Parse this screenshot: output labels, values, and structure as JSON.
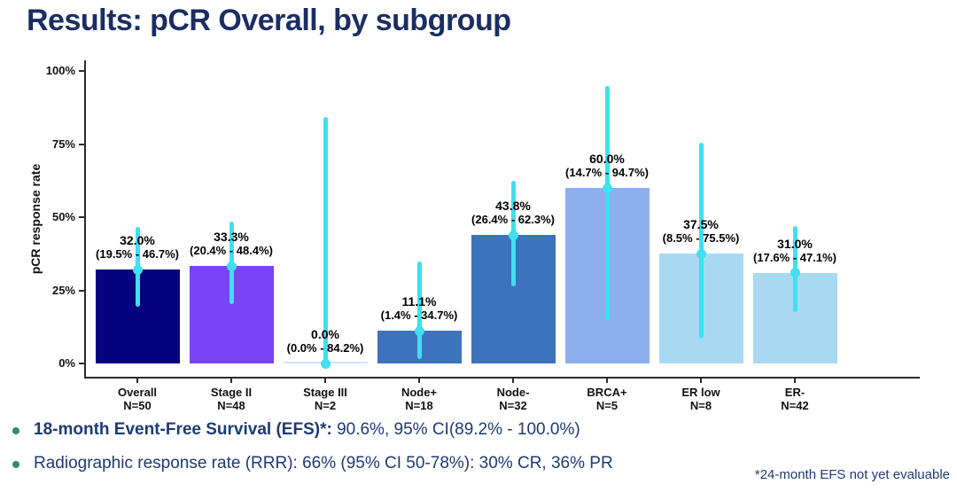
{
  "slide": {
    "title": "Results: pCR Overall, by subgroup",
    "bullets": [
      {
        "lead": "18-month Event-Free Survival (EFS)*:",
        "rest": " 90.6%, 95% CI(89.2% - 100.0%)"
      },
      {
        "lead": "",
        "rest": "Radiographic response rate (RRR): 66% (95% CI 50-78%): 30% CR, 36% PR"
      }
    ],
    "footnote": "*24-month EFS not yet evaluable",
    "colors": {
      "title_text": "#1b2e63",
      "body_text": "#1e3a72",
      "bullet_dot": "#2e8b74"
    }
  },
  "chart_data": {
    "type": "bar",
    "title": "",
    "xlabel": "",
    "ylabel": "pCR response rate",
    "ylim": [
      0,
      100
    ],
    "grid": false,
    "legend": "none",
    "yticks": [
      {
        "value": 0,
        "label": "0%"
      },
      {
        "value": 25,
        "label": "25%"
      },
      {
        "value": 50,
        "label": "50%"
      },
      {
        "value": 75,
        "label": "75%"
      },
      {
        "value": 100,
        "label": "100%"
      }
    ],
    "errorbar_color": "#3fe0f0",
    "point_color": "#3fe0f0",
    "groups": [
      {
        "category": "Overall",
        "n": "N=50",
        "value": 32.0,
        "value_label": "32.0%",
        "ci_low": 19.5,
        "ci_high": 46.7,
        "ci_label": "(19.5% - 46.7%)",
        "color": "#04027f"
      },
      {
        "category": "Stage II",
        "n": "N=48",
        "value": 33.3,
        "value_label": "33.3%",
        "ci_low": 20.4,
        "ci_high": 48.4,
        "ci_label": "(20.4% - 48.4%)",
        "color": "#7a43f6"
      },
      {
        "category": "Stage III",
        "n": "N=2",
        "value": 0.0,
        "value_label": "0.0%",
        "ci_low": 0.0,
        "ci_high": 84.2,
        "ci_label": "(0.0% - 84.2%)",
        "color": "#cfe7f8"
      },
      {
        "category": "Node+",
        "n": "N=18",
        "value": 11.1,
        "value_label": "11.1%",
        "ci_low": 1.4,
        "ci_high": 34.7,
        "ci_label": "(1.4% - 34.7%)",
        "color": "#3d73bc"
      },
      {
        "category": "Node-",
        "n": "N=32",
        "value": 43.8,
        "value_label": "43.8%",
        "ci_low": 26.4,
        "ci_high": 62.3,
        "ci_label": "(26.4% - 62.3%)",
        "color": "#3d73bc"
      },
      {
        "category": "BRCA+",
        "n": "N=5",
        "value": 60.0,
        "value_label": "60.0%",
        "ci_low": 14.7,
        "ci_high": 94.7,
        "ci_label": "(14.7% - 94.7%)",
        "color": "#8cb0ee"
      },
      {
        "category": "ER low",
        "n": "N=8",
        "value": 37.5,
        "value_label": "37.5%",
        "ci_low": 8.5,
        "ci_high": 75.5,
        "ci_label": "(8.5% - 75.5%)",
        "color": "#a9d9f2"
      },
      {
        "category": "ER-",
        "n": "N=42",
        "value": 31.0,
        "value_label": "31.0%",
        "ci_low": 17.6,
        "ci_high": 47.1,
        "ci_label": "(17.6% - 47.1%)",
        "color": "#a9d9f2"
      }
    ]
  }
}
